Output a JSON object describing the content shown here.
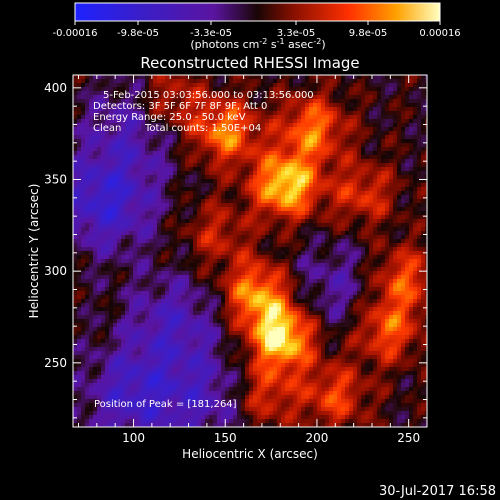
{
  "chart_data": {
    "type": "heatmap",
    "title": "Reconstructed RHESSI Image",
    "xlabel": "Heliocentric X (arcsec)",
    "ylabel": "Heliocentric Y (arcsec)",
    "xlim": [
      67,
      260
    ],
    "ylim": [
      215,
      407
    ],
    "x_ticks": [
      100,
      150,
      200,
      250
    ],
    "y_ticks": [
      250,
      300,
      350,
      400
    ],
    "colorbar": {
      "colormap": "blue-purple-red-yellow-white",
      "range": [
        -0.00016,
        0.00016
      ],
      "tick_labels": [
        "-0.00016",
        "-9.8e-05",
        "-3.3e-05",
        "3.3e-05",
        "9.8e-05",
        "0.00016"
      ],
      "unit_line1": "(photons cm",
      "unit_sup1": "-2",
      "unit_mid1": " s",
      "unit_sup2": "-1",
      "unit_mid2": " asec",
      "unit_sup3": "-2",
      "unit_end": ")"
    },
    "sources": [
      {
        "x": 181,
        "y": 264,
        "level": 1.0
      },
      {
        "x": 183,
        "y": 347,
        "level": 0.95
      },
      {
        "x": 167,
        "y": 288,
        "level": 0.75
      },
      {
        "x": 150,
        "y": 376,
        "level": 0.7
      },
      {
        "x": 198,
        "y": 378,
        "level": 0.65
      },
      {
        "x": 238,
        "y": 268,
        "level": 0.6
      },
      {
        "x": 247,
        "y": 296,
        "level": 0.55
      },
      {
        "x": 210,
        "y": 232,
        "level": 0.5
      },
      {
        "x": 120,
        "y": 393,
        "level": 0.45
      },
      {
        "x": 225,
        "y": 342,
        "level": 0.45
      },
      {
        "x": 172,
        "y": 232,
        "level": 0.45
      },
      {
        "x": 145,
        "y": 320,
        "level": 0.35
      },
      {
        "x": 85,
        "y": 338,
        "level": -0.6
      },
      {
        "x": 100,
        "y": 232,
        "level": -0.5
      },
      {
        "x": 122,
        "y": 272,
        "level": -0.4
      },
      {
        "x": 100,
        "y": 380,
        "level": -0.35
      },
      {
        "x": 210,
        "y": 290,
        "level": -0.3
      },
      {
        "x": 140,
        "y": 230,
        "level": -0.35
      }
    ]
  },
  "annotations": {
    "time_range": "5-Feb-2015 03:03:56.000 to 03:13:56.000",
    "detectors": "Detectors: 3F 5F 6F 7F 8F 9F, Att 0",
    "energy": "Energy Range: 25.0 - 50.0 keV",
    "method": "Clean",
    "total_counts": "Total counts: 1.50E+04",
    "peak": "Position of Peak = [181,264]"
  },
  "footer": {
    "date": "30-Jul-2017 16:58"
  }
}
